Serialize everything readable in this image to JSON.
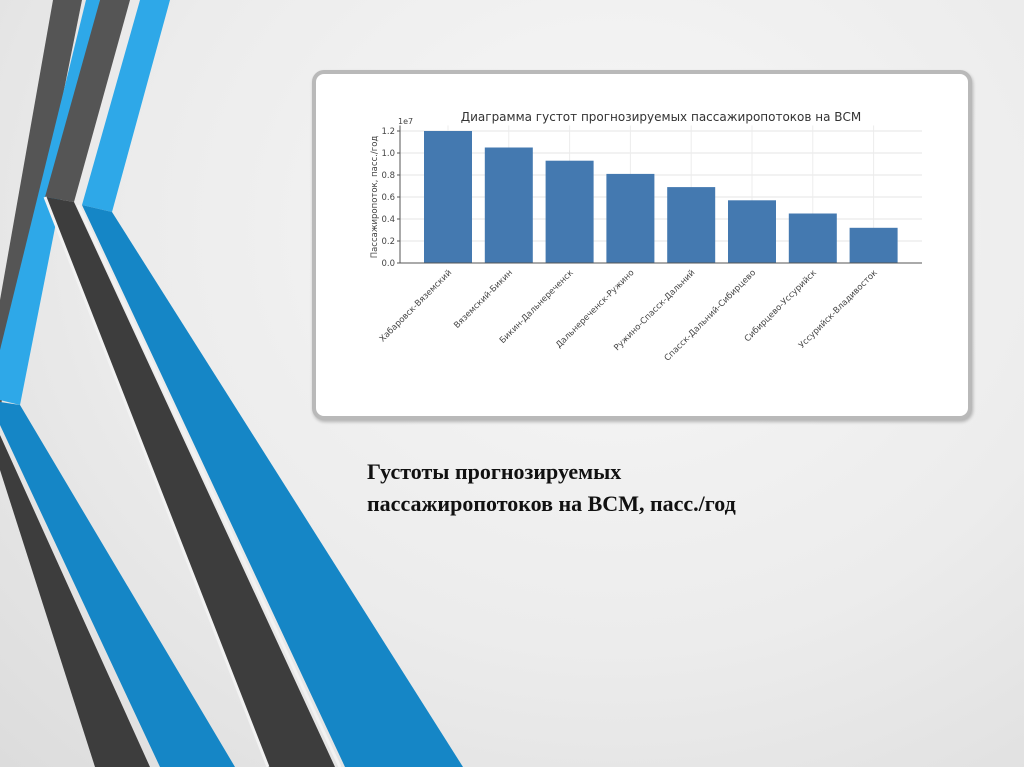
{
  "slide": {
    "caption_line1": "Густоты прогнозируемых",
    "caption_line2": "пассажиропотоков на ВСМ, пасс./год",
    "colors": {
      "dark_stripe": "#555555",
      "dark_stripe_shade": "#3d3d3d",
      "blue_stripe": "#2ea8e8",
      "blue_stripe_shade": "#1586c6"
    }
  },
  "chart_data": {
    "type": "bar",
    "title": "Диаграмма густот прогнозируемых пассажиропотоков на ВСМ",
    "xlabel": "",
    "ylabel": "Пассажиропоток, пасс./год",
    "y_offset_label": "1e7",
    "categories": [
      "Хабаровск-Вяземский",
      "Вяземский-Бикин",
      "Бикин-Дальнереченск",
      "Дальнереченск-Ружино",
      "Ружино-Спасск-Дальний",
      "Спасск-Дальний-Сибирцево",
      "Сибирцево-Уссурийск",
      "Уссурийск-Владивосток"
    ],
    "values": [
      12000000,
      10500000,
      9300000,
      8100000,
      6900000,
      5700000,
      4500000,
      3200000
    ],
    "yticks": [
      "0.0",
      "0.2",
      "0.4",
      "0.6",
      "0.8",
      "1.0",
      "1.2"
    ],
    "ylim": [
      0,
      12500000
    ],
    "grid": true,
    "bar_color": "#4479b0"
  }
}
